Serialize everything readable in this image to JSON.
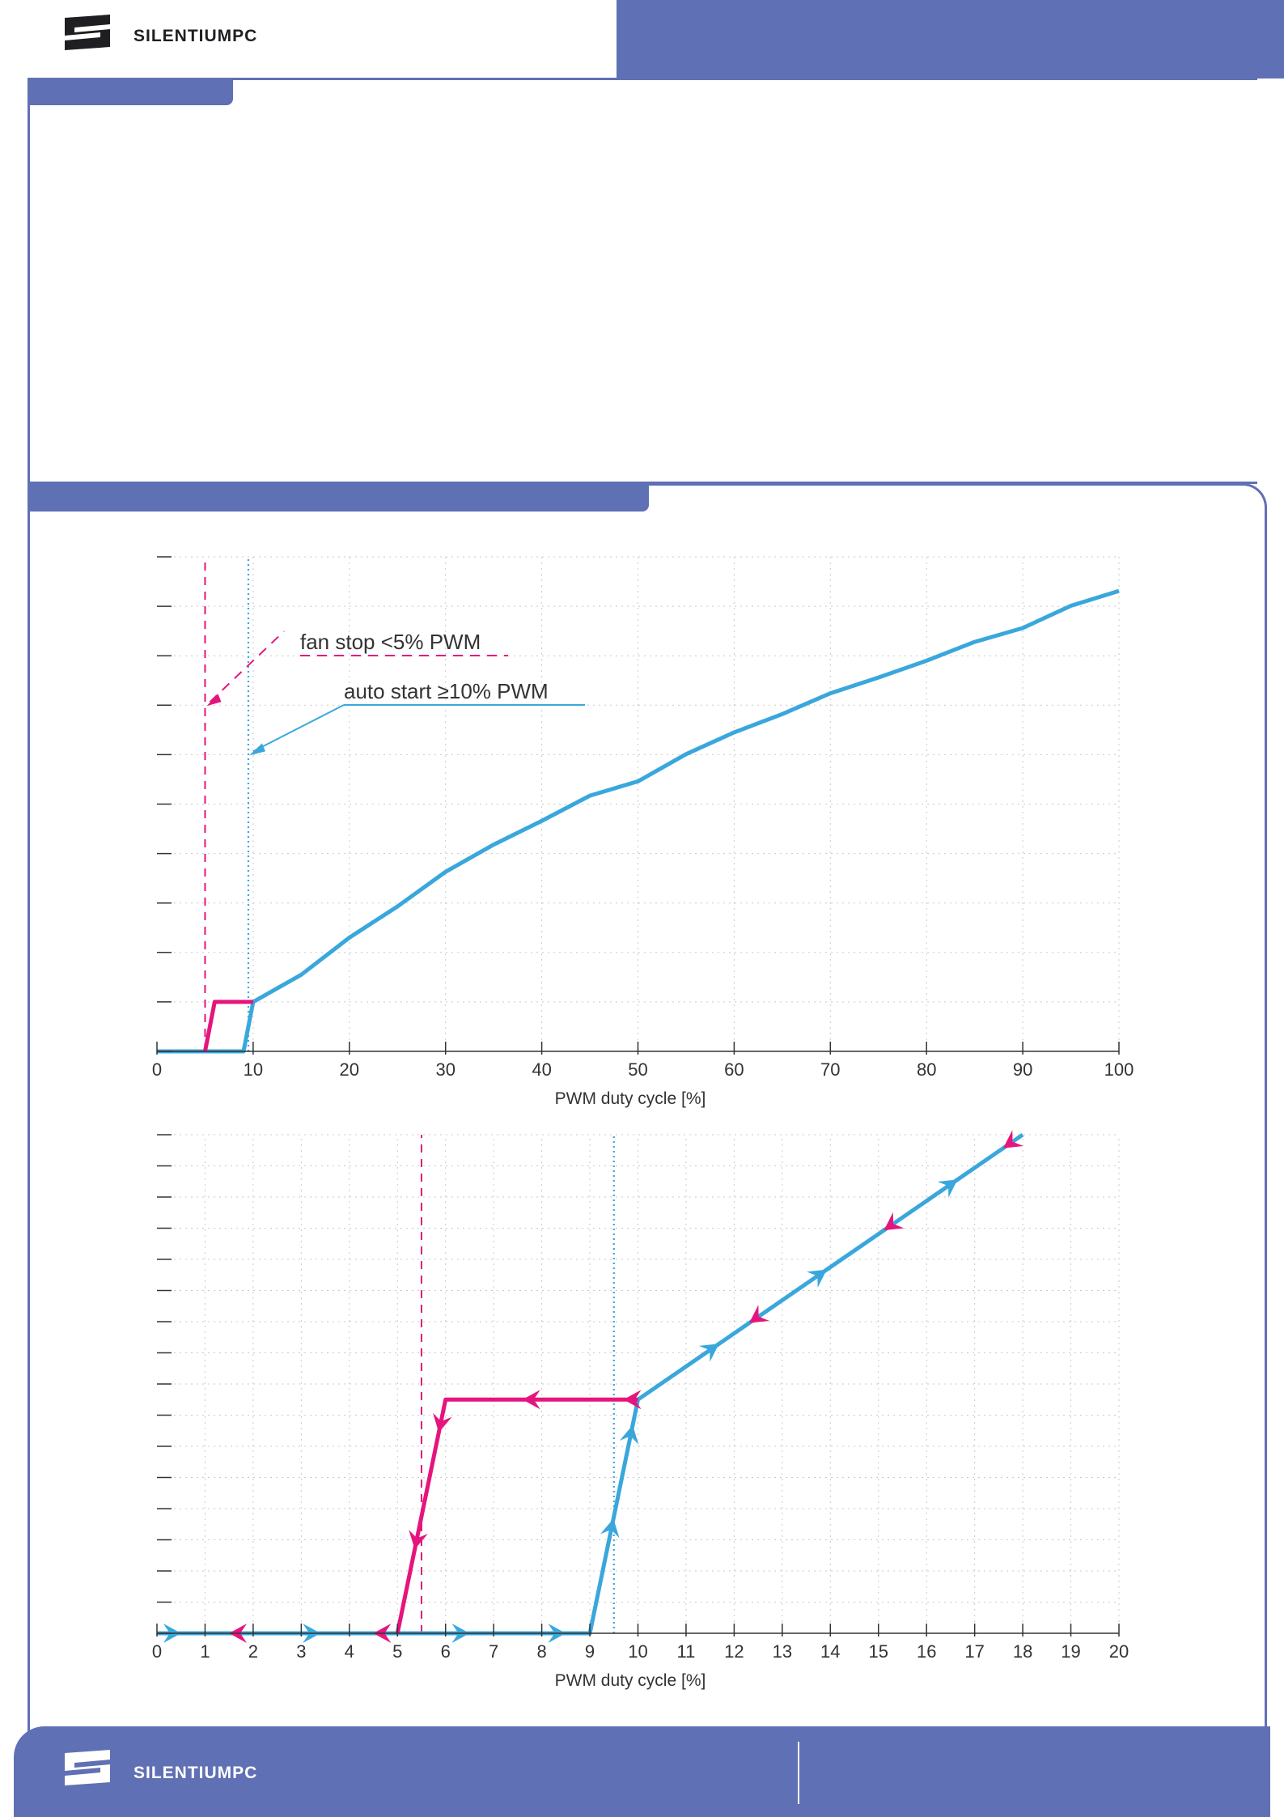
{
  "brand": {
    "name": "SILENTIUMPC"
  },
  "colors": {
    "accent": "#6070b4",
    "series_on": "#3aa7dc",
    "series_off": "#e5157d"
  },
  "chart_data": [
    {
      "type": "line",
      "xlabel": "PWM duty cycle [%]",
      "xlim": [
        0,
        100
      ],
      "xticks": [
        0,
        10,
        20,
        30,
        40,
        50,
        60,
        70,
        80,
        90,
        100
      ],
      "ylim": [
        0,
        10
      ],
      "yticks": [
        0,
        1,
        2,
        3,
        4,
        5,
        6,
        7,
        8,
        9,
        10
      ],
      "grid": true,
      "series": [
        {
          "color": "#e5157d",
          "x": [
            5,
            6,
            10
          ],
          "y": [
            0,
            1,
            1
          ]
        },
        {
          "color": "#3aa7dc",
          "x": [
            0,
            9,
            10,
            15,
            20,
            25,
            30,
            35,
            40,
            45,
            50,
            55,
            60,
            65,
            70,
            75,
            80,
            85,
            90,
            95,
            100
          ],
          "y": [
            0,
            0,
            1,
            1.55,
            2.3,
            2.93,
            3.63,
            4.18,
            4.66,
            5.17,
            5.46,
            6.01,
            6.45,
            6.82,
            7.24,
            7.56,
            7.9,
            8.28,
            8.56,
            9.01,
            9.31
          ]
        }
      ],
      "reference_lines": [
        {
          "x": 5,
          "style": "dashed",
          "color": "#e5157d"
        },
        {
          "x": 9.5,
          "style": "dotted",
          "color": "#3aa7dc"
        }
      ],
      "annotations": [
        {
          "text": "fan stop <5% PWM",
          "color": "#e5157d",
          "points_to": [
            5,
            7
          ]
        },
        {
          "text": "auto start ≥10% PWM",
          "color": "#3aa7dc",
          "points_to": [
            9.5,
            6
          ]
        }
      ]
    },
    {
      "type": "line",
      "xlabel": "PWM duty cycle [%]",
      "xlim": [
        0,
        20
      ],
      "xticks": [
        0,
        1,
        2,
        3,
        4,
        5,
        6,
        7,
        8,
        9,
        10,
        11,
        12,
        13,
        14,
        15,
        16,
        17,
        18,
        19,
        20
      ],
      "ylim": [
        0,
        16
      ],
      "yticks": [
        0,
        1,
        2,
        3,
        4,
        5,
        6,
        7,
        8,
        9,
        10,
        11,
        12,
        13,
        14,
        15,
        16
      ],
      "grid": true,
      "series": [
        {
          "color": "#3aa7dc",
          "direction": "forward",
          "x": [
            0,
            9,
            10,
            18
          ],
          "y": [
            0,
            0,
            7.5,
            16
          ]
        },
        {
          "color": "#e5157d",
          "direction": "backward",
          "x": [
            5,
            6,
            10
          ],
          "y": [
            0,
            7.5,
            7.5
          ]
        }
      ],
      "reference_lines": [
        {
          "x": 5.5,
          "style": "dashed",
          "color": "#e5157d"
        },
        {
          "x": 9.5,
          "style": "dotted",
          "color": "#3aa7dc"
        }
      ]
    }
  ]
}
